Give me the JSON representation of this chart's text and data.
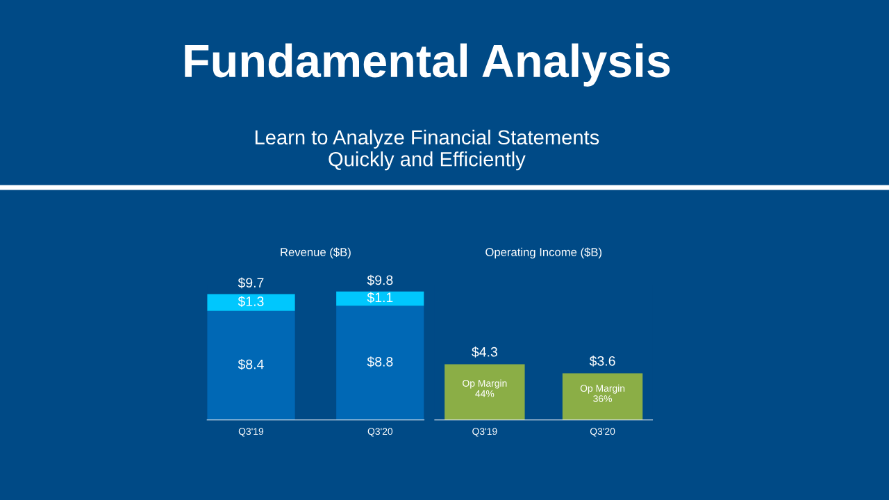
{
  "chart_data": [
    {
      "type": "bar",
      "title": "Revenue ($B)",
      "stacked": true,
      "categories": [
        "Q3'19",
        "Q3'20"
      ],
      "series": [
        {
          "color": "#0068b5",
          "values": [
            8.4,
            8.8
          ],
          "value_labels": [
            "$8.4",
            "$8.8"
          ]
        },
        {
          "color": "#00c7fd",
          "values": [
            1.3,
            1.1
          ],
          "value_labels": [
            "$1.3",
            "$1.1"
          ]
        }
      ],
      "totals": [
        "$9.7",
        "$9.8"
      ],
      "annotations": [
        "Fundamental Analysis",
        "Learn to Analyze Financial Statements\nQuickly and Efficiently"
      ],
      "grid": false,
      "legend": false,
      "tick_labels": "x"
    },
    {
      "type": "bar",
      "title": "Operating Income ($B)",
      "categories": [
        "Q3'19",
        "Q3'20"
      ],
      "series": [
        {
          "color": "#8bae46",
          "values": [
            4.3,
            3.6
          ],
          "value_labels": [
            "$4.3",
            "$3.6"
          ]
        }
      ],
      "annotations": [
        "Op Margin\n44%",
        "Op Margin\n36%"
      ],
      "grid": false,
      "legend": false,
      "tick_labels": "x"
    }
  ]
}
